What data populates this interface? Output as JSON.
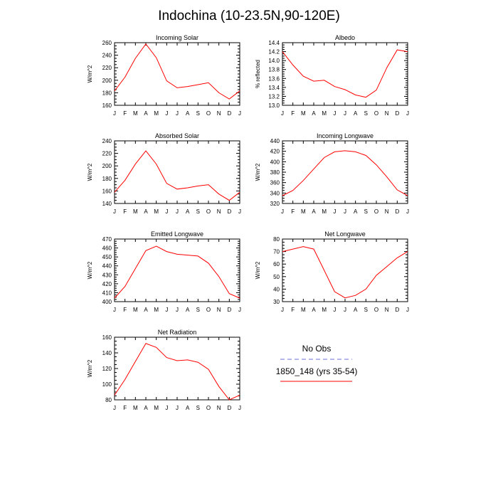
{
  "title": "Indochina (10-23.5N,90-120E)",
  "legend": {
    "items": [
      {
        "label": "No Obs",
        "color": "#6f6fdc",
        "dash": true
      },
      {
        "label": "1850_148 (yrs 35-54)",
        "color": "#ff0000",
        "dash": false
      }
    ]
  },
  "chart_data": [
    {
      "type": "line",
      "title": "Incoming Solar",
      "ylabel": "W/m^2",
      "categories": [
        "J",
        "F",
        "M",
        "A",
        "M",
        "J",
        "J",
        "A",
        "S",
        "O",
        "N",
        "D",
        "J"
      ],
      "ylim": [
        160,
        260
      ],
      "yticks": [
        160,
        180,
        200,
        220,
        240,
        260
      ],
      "ytick_labels": [
        "160",
        "180",
        "200",
        "220",
        "240",
        "260"
      ],
      "series": [
        {
          "name": "1850_148 (yrs 35-54)",
          "color": "#ff0000",
          "values": [
            183,
            205,
            235,
            258,
            236,
            199,
            188,
            190,
            193,
            196,
            180,
            170,
            183
          ]
        }
      ]
    },
    {
      "type": "line",
      "title": "Albedo",
      "ylabel": "% reflected",
      "categories": [
        "J",
        "F",
        "M",
        "A",
        "M",
        "J",
        "J",
        "A",
        "S",
        "O",
        "N",
        "D",
        "J"
      ],
      "ylim": [
        13.0,
        14.4
      ],
      "yticks": [
        13.0,
        13.2,
        13.4,
        13.6,
        13.8,
        14.0,
        14.2,
        14.4
      ],
      "ytick_labels": [
        "13.0",
        "13.2",
        "13.4",
        "13.6",
        "13.8",
        "14.0",
        "14.2",
        "14.4"
      ],
      "series": [
        {
          "name": "1850_148 (yrs 35-54)",
          "color": "#ff0000",
          "values": [
            14.2,
            13.9,
            13.65,
            13.54,
            13.56,
            13.42,
            13.35,
            13.23,
            13.18,
            13.34,
            13.84,
            14.24,
            14.2
          ]
        }
      ]
    },
    {
      "type": "line",
      "title": "Absorbed Solar",
      "ylabel": "W/m^2",
      "categories": [
        "J",
        "F",
        "M",
        "A",
        "M",
        "J",
        "J",
        "A",
        "S",
        "O",
        "N",
        "D",
        "J"
      ],
      "ylim": [
        140,
        240
      ],
      "yticks": [
        140,
        160,
        180,
        200,
        220,
        240
      ],
      "ytick_labels": [
        "140",
        "160",
        "180",
        "200",
        "220",
        "240"
      ],
      "series": [
        {
          "name": "1850_148 (yrs 35-54)",
          "color": "#ff0000",
          "values": [
            158,
            177,
            203,
            224,
            203,
            172,
            163,
            165,
            168,
            170,
            155,
            145,
            158
          ]
        }
      ]
    },
    {
      "type": "line",
      "title": "Incoming Longwave",
      "ylabel": "W/m^2",
      "categories": [
        "J",
        "F",
        "M",
        "A",
        "M",
        "J",
        "J",
        "A",
        "S",
        "O",
        "N",
        "D",
        "J"
      ],
      "ylim": [
        320,
        440
      ],
      "yticks": [
        320,
        340,
        360,
        380,
        400,
        420,
        440
      ],
      "ytick_labels": [
        "320",
        "340",
        "360",
        "380",
        "400",
        "420",
        "440"
      ],
      "series": [
        {
          "name": "1850_148 (yrs 35-54)",
          "color": "#ff0000",
          "values": [
            335,
            345,
            364,
            386,
            408,
            419,
            421,
            419,
            412,
            394,
            371,
            346,
            335
          ]
        }
      ]
    },
    {
      "type": "line",
      "title": "Emitted Longwave",
      "ylabel": "W/m^2",
      "categories": [
        "J",
        "F",
        "M",
        "A",
        "M",
        "J",
        "J",
        "A",
        "S",
        "O",
        "N",
        "D",
        "J"
      ],
      "ylim": [
        400,
        470
      ],
      "yticks": [
        400,
        410,
        420,
        430,
        440,
        450,
        460,
        470
      ],
      "ytick_labels": [
        "400",
        "410",
        "420",
        "430",
        "440",
        "450",
        "460",
        "470"
      ],
      "series": [
        {
          "name": "1850_148 (yrs 35-54)",
          "color": "#ff0000",
          "values": [
            404,
            417,
            437,
            457,
            462,
            456,
            453,
            452,
            451,
            443,
            428,
            409,
            404
          ]
        }
      ]
    },
    {
      "type": "line",
      "title": "Net Longwave",
      "ylabel": "W/m^2",
      "categories": [
        "J",
        "F",
        "M",
        "A",
        "M",
        "J",
        "J",
        "A",
        "S",
        "O",
        "N",
        "D",
        "J"
      ],
      "ylim": [
        30,
        80
      ],
      "yticks": [
        30,
        40,
        50,
        60,
        70,
        80
      ],
      "ytick_labels": [
        "30",
        "40",
        "50",
        "60",
        "70",
        "80"
      ],
      "series": [
        {
          "name": "1850_148 (yrs 35-54)",
          "color": "#ff0000",
          "values": [
            70,
            72,
            74,
            72,
            55,
            38,
            33,
            35,
            40,
            51,
            58,
            65,
            70
          ]
        }
      ]
    },
    {
      "type": "line",
      "title": "Net Radiation",
      "ylabel": "W/m^2",
      "categories": [
        "J",
        "F",
        "M",
        "A",
        "M",
        "J",
        "J",
        "A",
        "S",
        "O",
        "N",
        "D",
        "J"
      ],
      "ylim": [
        80,
        160
      ],
      "yticks": [
        80,
        100,
        120,
        140,
        160
      ],
      "ytick_labels": [
        "80",
        "100",
        "120",
        "140",
        "160"
      ],
      "series": [
        {
          "name": "1850_148 (yrs 35-54)",
          "color": "#ff0000",
          "values": [
            86,
            106,
            129,
            152,
            147,
            134,
            130,
            131,
            128,
            119,
            97,
            80,
            86
          ]
        }
      ]
    }
  ]
}
